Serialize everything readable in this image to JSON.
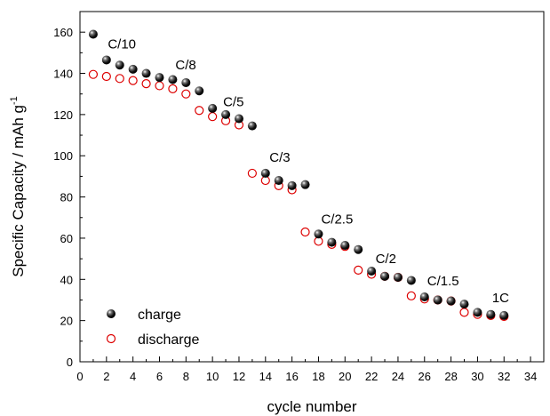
{
  "chart_data": {
    "type": "scatter",
    "xlabel": "cycle number",
    "ylabel": "Specific Capacity / mAh g",
    "ylabel_superscript": "-1",
    "xlim": [
      0,
      35
    ],
    "ylim": [
      0,
      170
    ],
    "x_ticks": [
      0,
      2,
      4,
      6,
      8,
      10,
      12,
      14,
      16,
      18,
      20,
      22,
      24,
      26,
      28,
      30,
      32,
      34
    ],
    "y_ticks": [
      0,
      20,
      40,
      60,
      80,
      100,
      120,
      140,
      160
    ],
    "grid": false,
    "legend_position": "bottom-left",
    "series": [
      {
        "name": "charge",
        "marker": "filled-sphere",
        "color": "#000000",
        "points": [
          [
            1,
            159
          ],
          [
            2,
            146.5
          ],
          [
            3,
            144
          ],
          [
            4,
            142
          ],
          [
            5,
            140
          ],
          [
            6,
            138
          ],
          [
            7,
            137
          ],
          [
            8,
            135.5
          ],
          [
            9,
            131.5
          ],
          [
            10,
            123
          ],
          [
            11,
            120
          ],
          [
            12,
            118
          ],
          [
            13,
            114.5
          ],
          [
            14,
            91.5
          ],
          [
            15,
            88
          ],
          [
            16,
            85.5
          ],
          [
            17,
            86
          ],
          [
            18,
            62
          ],
          [
            19,
            58
          ],
          [
            20,
            56.5
          ],
          [
            21,
            54.5
          ],
          [
            22,
            44
          ],
          [
            23,
            41.5
          ],
          [
            24,
            41
          ],
          [
            25,
            39.5
          ],
          [
            26,
            31.5
          ],
          [
            27,
            30
          ],
          [
            28,
            29.5
          ],
          [
            29,
            28
          ],
          [
            30,
            24
          ],
          [
            31,
            23
          ],
          [
            32,
            22.5
          ]
        ]
      },
      {
        "name": "discharge",
        "marker": "open-circle",
        "color": "#dd0000",
        "points": [
          [
            1,
            139.5
          ],
          [
            2,
            138.5
          ],
          [
            3,
            137.5
          ],
          [
            4,
            136.5
          ],
          [
            5,
            135
          ],
          [
            6,
            134
          ],
          [
            7,
            132.5
          ],
          [
            8,
            130
          ],
          [
            9,
            122
          ],
          [
            10,
            119
          ],
          [
            11,
            117
          ],
          [
            12,
            115
          ],
          [
            13,
            91.5
          ],
          [
            14,
            88
          ],
          [
            15,
            85.5
          ],
          [
            16,
            83.5
          ],
          [
            17,
            63
          ],
          [
            18,
            58.5
          ],
          [
            19,
            57
          ],
          [
            20,
            56
          ],
          [
            21,
            44.5
          ],
          [
            22,
            42.5
          ],
          [
            23,
            41.5
          ],
          [
            24,
            41
          ],
          [
            25,
            32
          ],
          [
            26,
            30.5
          ],
          [
            27,
            30
          ],
          [
            28,
            29.5
          ],
          [
            29,
            24
          ],
          [
            30,
            23
          ],
          [
            31,
            22.5
          ],
          [
            32,
            22
          ]
        ]
      }
    ],
    "annotations": [
      {
        "text": "C/10",
        "x": 2.1,
        "y": 152
      },
      {
        "text": "C/8",
        "x": 7.2,
        "y": 142
      },
      {
        "text": "C/5",
        "x": 10.8,
        "y": 124
      },
      {
        "text": "C/3",
        "x": 14.3,
        "y": 97
      },
      {
        "text": "C/2.5",
        "x": 18.2,
        "y": 67
      },
      {
        "text": "C/2",
        "x": 22.3,
        "y": 48
      },
      {
        "text": "C/1.5",
        "x": 26.2,
        "y": 37
      },
      {
        "text": "1C",
        "x": 31.1,
        "y": 29
      }
    ]
  },
  "legend": {
    "charge_label": "charge",
    "discharge_label": "discharge"
  }
}
